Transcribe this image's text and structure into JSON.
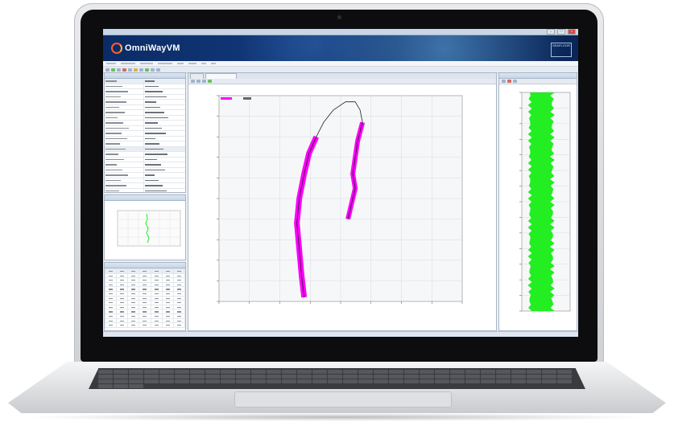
{
  "app": {
    "logo_text": "OmniWayVM",
    "brand_badge": "SEAFLOOR"
  },
  "colors": {
    "banner": "#0b2b66",
    "logo_accent": "#ff5b2e",
    "track": "#ff00ff",
    "depth": "#22ee22"
  },
  "chart_data": [
    {
      "type": "line",
      "panel": "track-plot",
      "series": [
        {
          "color": "#ff00ff",
          "x": [
            0.35,
            0.34,
            0.33,
            0.32,
            0.33,
            0.35,
            0.37,
            0.4,
            0.43,
            0.47,
            0.52,
            0.56,
            0.58,
            0.59,
            0.57,
            0.56,
            0.55,
            0.56,
            0.54,
            0.53
          ],
          "y": [
            0.02,
            0.12,
            0.25,
            0.38,
            0.5,
            0.62,
            0.72,
            0.8,
            0.87,
            0.93,
            0.97,
            0.97,
            0.93,
            0.87,
            0.78,
            0.7,
            0.62,
            0.55,
            0.45,
            0.4
          ]
        }
      ],
      "grid": true,
      "legend_position": "top-left"
    },
    {
      "type": "area",
      "panel": "depth-profile",
      "series": [
        {
          "color": "#22ee22"
        }
      ],
      "grid": true
    },
    {
      "type": "line",
      "panel": "speed",
      "series": [
        {
          "color": "#22cc22"
        }
      ],
      "grid": true
    }
  ],
  "properties": {
    "rows": [
      {
        "k": "",
        "v": ""
      },
      {
        "k": "",
        "v": ""
      },
      {
        "k": "",
        "v": ""
      },
      {
        "k": "",
        "v": ""
      },
      {
        "k": "",
        "v": ""
      },
      {
        "k": "",
        "v": ""
      },
      {
        "k": "",
        "v": ""
      },
      {
        "k": "",
        "v": ""
      },
      {
        "k": "",
        "v": ""
      },
      {
        "k": "",
        "v": ""
      },
      {
        "k": "",
        "v": ""
      },
      {
        "k": "",
        "v": ""
      }
    ]
  }
}
